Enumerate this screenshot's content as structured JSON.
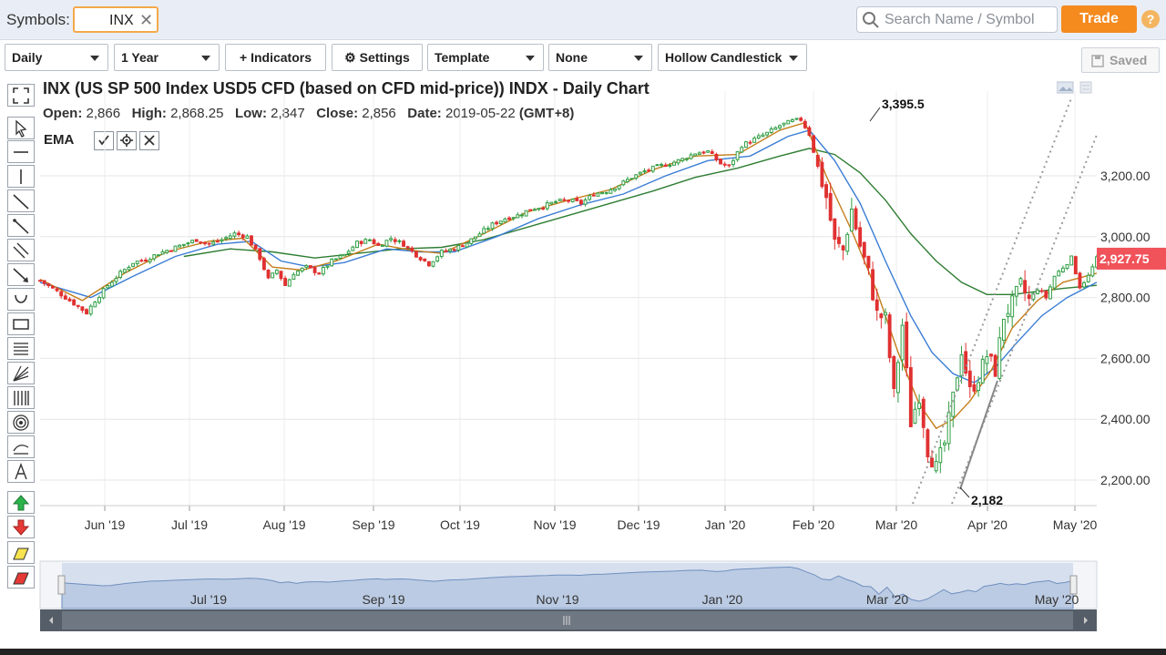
{
  "header": {
    "symbols_label": "Symbols:",
    "symbol_value": "INX",
    "clear_symbol": "✕",
    "search_placeholder": "Search Name / Symbol",
    "trade_label": "Trade",
    "help_label": "?"
  },
  "toolbar": {
    "period": "Daily",
    "range": "1 Year",
    "indicators": "Indicators",
    "settings": "Settings",
    "template": "Template",
    "compare": "None",
    "chart_style": "Hollow Candlestick",
    "saved": "Saved"
  },
  "chart_header": {
    "title": "INX (US SP 500 Index USD5 CFD (based on CFD mid-price)) INDX - Daily Chart",
    "open_label": "Open:",
    "open": "2,866",
    "high_label": "High:",
    "high": "2,868.25",
    "low_label": "Low:",
    "low": "2,847",
    "close_label": "Close:",
    "close": "2,856",
    "date_label": "Date:",
    "date": "2019-05-22",
    "tz": "(GMT+8)",
    "indicator": "EMA"
  },
  "annotations": {
    "high_label": "3,395.5",
    "low_label": "2,182",
    "last_price": "2,927.75"
  },
  "navigator": {
    "labels": [
      "Jul '19",
      "Sep '19",
      "Nov '19",
      "Jan '20",
      "Mar '20",
      "May '20"
    ]
  },
  "colors": {
    "up": "#2f9e44",
    "down": "#e03131",
    "ema_fast": "#c47d1a",
    "ema_mid": "#3a7dd4",
    "ema_slow": "#2e7d32",
    "last_price_bg": "#f0535a",
    "accent": "#f58a1f"
  },
  "chart_data": {
    "type": "candlestick",
    "yaxis_ticks": [
      2200,
      2400,
      2600,
      2800,
      3000,
      3200
    ],
    "ylim": [
      2130,
      3450
    ],
    "xaxis_ticks": [
      "Jun '19",
      "Jul '19",
      "Aug '19",
      "Sep '19",
      "Oct '19",
      "Nov '19",
      "Dec '19",
      "Jan '20",
      "Feb '20",
      "Mar '20",
      "Apr '20",
      "May '20"
    ],
    "close_path": [
      [
        0,
        2856
      ],
      [
        4,
        2820
      ],
      [
        8,
        2780
      ],
      [
        11,
        2750
      ],
      [
        13,
        2790
      ],
      [
        16,
        2840
      ],
      [
        19,
        2880
      ],
      [
        22,
        2915
      ],
      [
        25,
        2925
      ],
      [
        28,
        2945
      ],
      [
        31,
        2960
      ],
      [
        34,
        2975
      ],
      [
        37,
        2990
      ],
      [
        40,
        2975
      ],
      [
        43,
        2990
      ],
      [
        46,
        3010
      ],
      [
        49,
        3000
      ],
      [
        52,
        2930
      ],
      [
        54,
        2860
      ],
      [
        56,
        2890
      ],
      [
        58,
        2840
      ],
      [
        60,
        2880
      ],
      [
        63,
        2900
      ],
      [
        66,
        2880
      ],
      [
        69,
        2920
      ],
      [
        72,
        2940
      ],
      [
        75,
        2980
      ],
      [
        78,
        2990
      ],
      [
        80,
        2970
      ],
      [
        83,
        2995
      ],
      [
        86,
        2975
      ],
      [
        89,
        2940
      ],
      [
        92,
        2910
      ],
      [
        95,
        2950
      ],
      [
        98,
        2960
      ],
      [
        101,
        2980
      ],
      [
        104,
        3010
      ],
      [
        107,
        3040
      ],
      [
        110,
        3060
      ],
      [
        113,
        3070
      ],
      [
        116,
        3090
      ],
      [
        119,
        3100
      ],
      [
        122,
        3115
      ],
      [
        125,
        3120
      ],
      [
        128,
        3110
      ],
      [
        131,
        3140
      ],
      [
        134,
        3150
      ],
      [
        137,
        3170
      ],
      [
        140,
        3195
      ],
      [
        143,
        3215
      ],
      [
        146,
        3230
      ],
      [
        149,
        3240
      ],
      [
        152,
        3255
      ],
      [
        155,
        3275
      ],
      [
        158,
        3280
      ],
      [
        161,
        3240
      ],
      [
        163,
        3230
      ],
      [
        166,
        3300
      ],
      [
        169,
        3320
      ],
      [
        172,
        3340
      ],
      [
        175,
        3365
      ],
      [
        178,
        3380
      ],
      [
        180,
        3385
      ],
      [
        182,
        3337
      ],
      [
        184,
        3225
      ],
      [
        186,
        3130
      ],
      [
        188,
        2980
      ],
      [
        190,
        2955
      ],
      [
        192,
        3090
      ],
      [
        194,
        2970
      ],
      [
        196,
        2880
      ],
      [
        198,
        2745
      ],
      [
        200,
        2730
      ],
      [
        202,
        2480
      ],
      [
        204,
        2710
      ],
      [
        206,
        2390
      ],
      [
        208,
        2480
      ],
      [
        210,
        2300
      ],
      [
        212,
        2240
      ],
      [
        214,
        2320
      ],
      [
        216,
        2470
      ],
      [
        218,
        2630
      ],
      [
        220,
        2490
      ],
      [
        222,
        2540
      ],
      [
        224,
        2610
      ],
      [
        226,
        2560
      ],
      [
        228,
        2740
      ],
      [
        230,
        2780
      ],
      [
        232,
        2840
      ],
      [
        234,
        2790
      ],
      [
        236,
        2830
      ],
      [
        238,
        2800
      ],
      [
        240,
        2870
      ],
      [
        242,
        2900
      ],
      [
        244,
        2930
      ],
      [
        246,
        2836
      ],
      [
        248,
        2870
      ],
      [
        250,
        2927.75
      ]
    ],
    "ema_fast_path": [
      [
        0,
        2860
      ],
      [
        10,
        2790
      ],
      [
        20,
        2880
      ],
      [
        30,
        2950
      ],
      [
        40,
        2985
      ],
      [
        48,
        2995
      ],
      [
        55,
        2900
      ],
      [
        62,
        2890
      ],
      [
        70,
        2920
      ],
      [
        80,
        2975
      ],
      [
        88,
        2955
      ],
      [
        95,
        2945
      ],
      [
        105,
        3010
      ],
      [
        115,
        3080
      ],
      [
        125,
        3120
      ],
      [
        135,
        3155
      ],
      [
        145,
        3220
      ],
      [
        155,
        3265
      ],
      [
        165,
        3270
      ],
      [
        175,
        3350
      ],
      [
        181,
        3375
      ],
      [
        186,
        3200
      ],
      [
        192,
        3020
      ],
      [
        198,
        2820
      ],
      [
        203,
        2620
      ],
      [
        208,
        2450
      ],
      [
        212,
        2370
      ],
      [
        216,
        2400
      ],
      [
        220,
        2460
      ],
      [
        225,
        2560
      ],
      [
        230,
        2700
      ],
      [
        236,
        2790
      ],
      [
        242,
        2850
      ],
      [
        250,
        2880
      ]
    ],
    "ema_mid_path": [
      [
        0,
        2850
      ],
      [
        12,
        2800
      ],
      [
        22,
        2870
      ],
      [
        32,
        2935
      ],
      [
        42,
        2975
      ],
      [
        50,
        2985
      ],
      [
        57,
        2920
      ],
      [
        64,
        2900
      ],
      [
        72,
        2915
      ],
      [
        82,
        2960
      ],
      [
        90,
        2950
      ],
      [
        98,
        2950
      ],
      [
        108,
        3000
      ],
      [
        118,
        3060
      ],
      [
        128,
        3105
      ],
      [
        138,
        3140
      ],
      [
        148,
        3200
      ],
      [
        158,
        3250
      ],
      [
        168,
        3265
      ],
      [
        177,
        3330
      ],
      [
        182,
        3350
      ],
      [
        188,
        3250
      ],
      [
        194,
        3110
      ],
      [
        200,
        2920
      ],
      [
        206,
        2740
      ],
      [
        211,
        2620
      ],
      [
        216,
        2550
      ],
      [
        221,
        2520
      ],
      [
        226,
        2570
      ],
      [
        231,
        2650
      ],
      [
        237,
        2740
      ],
      [
        243,
        2800
      ],
      [
        250,
        2850
      ]
    ],
    "ema_slow_path": [
      [
        34,
        2935
      ],
      [
        45,
        2960
      ],
      [
        55,
        2950
      ],
      [
        65,
        2930
      ],
      [
        75,
        2945
      ],
      [
        85,
        2960
      ],
      [
        95,
        2965
      ],
      [
        105,
        2990
      ],
      [
        115,
        3030
      ],
      [
        125,
        3070
      ],
      [
        135,
        3110
      ],
      [
        145,
        3150
      ],
      [
        155,
        3195
      ],
      [
        165,
        3225
      ],
      [
        175,
        3265
      ],
      [
        182,
        3290
      ],
      [
        188,
        3270
      ],
      [
        194,
        3210
      ],
      [
        200,
        3120
      ],
      [
        206,
        3010
      ],
      [
        212,
        2920
      ],
      [
        218,
        2850
      ],
      [
        224,
        2810
      ],
      [
        230,
        2810
      ],
      [
        236,
        2820
      ],
      [
        242,
        2830
      ],
      [
        250,
        2840
      ]
    ]
  }
}
